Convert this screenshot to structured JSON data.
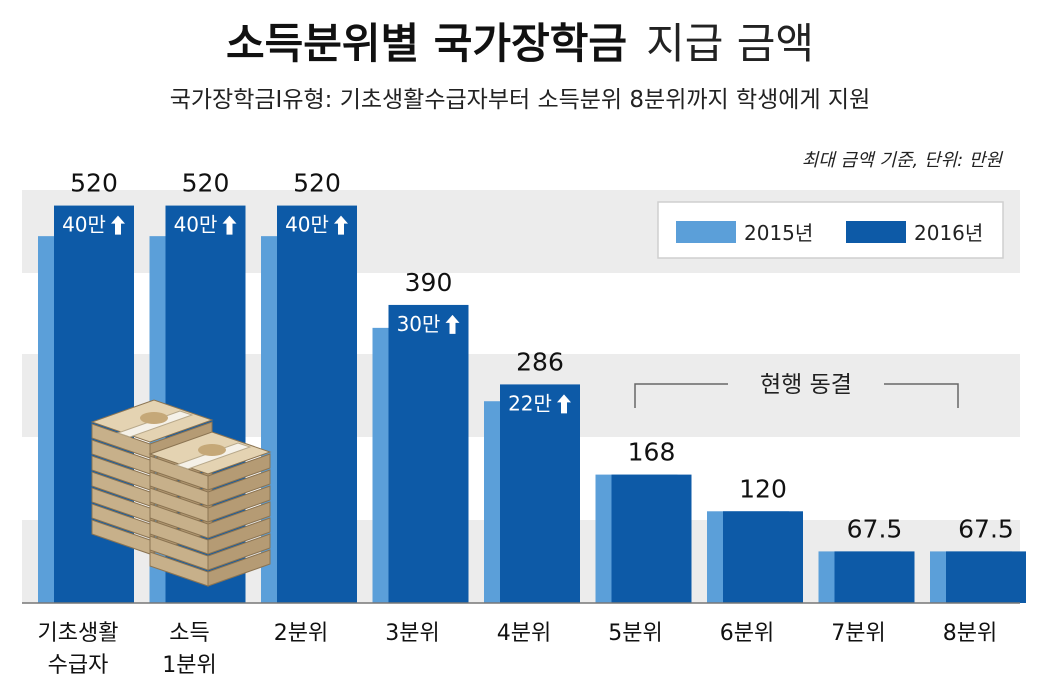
{
  "chart_data": {
    "type": "bar",
    "title_bold": "소득분위별 국가장학금",
    "title_regular": "지급 금액",
    "subtitle": "국가장학금Ⅰ유형: 기초생활수급자부터 소득분위 8분위까지 학생에게 지원",
    "note": "최대 금액 기준, 단위: 만원",
    "categories": [
      [
        "기초생활",
        "수급자"
      ],
      [
        "소득",
        "1분위"
      ],
      [
        "2분위"
      ],
      [
        "3분위"
      ],
      [
        "4분위"
      ],
      [
        "5분위"
      ],
      [
        "6분위"
      ],
      [
        "7분위"
      ],
      [
        "8분위"
      ]
    ],
    "series": [
      {
        "name": "2015년",
        "color": "#5b9fd9",
        "values": [
          480,
          480,
          480,
          360,
          264,
          168,
          120,
          67.5,
          67.5
        ]
      },
      {
        "name": "2016년",
        "color": "#0d5aa7",
        "values": [
          520,
          520,
          520,
          390,
          286,
          168,
          120,
          67.5,
          67.5
        ]
      }
    ],
    "value_labels": [
      "520",
      "520",
      "520",
      "390",
      "286",
      "168",
      "120",
      "67.5",
      "67.5"
    ],
    "increase_labels": [
      "40만",
      "40만",
      "40만",
      "30만",
      "22만",
      "",
      "",
      "",
      ""
    ],
    "frozen_label": "현행 동결",
    "ylim": [
      0,
      560
    ],
    "legend_position": "top-right",
    "grid": "horizontal bands"
  },
  "colors": {
    "bar_2015": "#5b9fd9",
    "bar_2016": "#0d5aa7",
    "band": "#ececec",
    "text": "#1a1a1a",
    "axis": "#555555"
  },
  "illustration": "money-stacks-icon"
}
